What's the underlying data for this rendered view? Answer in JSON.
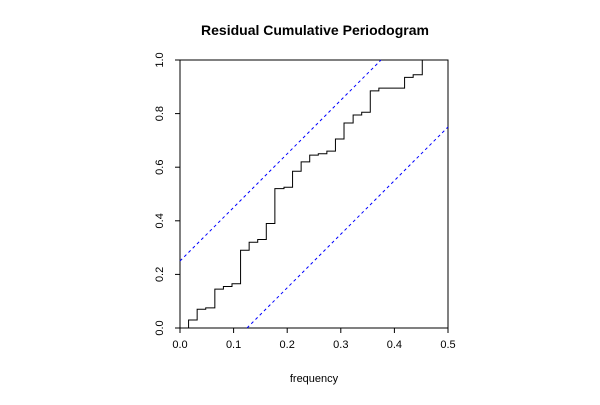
{
  "chart_data": {
    "type": "line",
    "title": "Residual Cumulative Periodogram",
    "xlabel": "frequency",
    "ylabel": "",
    "xlim": [
      0,
      0.5
    ],
    "ylim": [
      0,
      1
    ],
    "x_ticks": [
      "0.0",
      "0.1",
      "0.2",
      "0.3",
      "0.4",
      "0.5"
    ],
    "y_ticks": [
      "0.0",
      "0.2",
      "0.4",
      "0.6",
      "0.8",
      "1.0"
    ],
    "grid": false,
    "legend": "none",
    "series": [
      {
        "style": "step",
        "color": "#000000",
        "x": [
          0.0,
          0.016,
          0.032,
          0.048,
          0.065,
          0.081,
          0.097,
          0.113,
          0.129,
          0.145,
          0.161,
          0.177,
          0.194,
          0.21,
          0.226,
          0.242,
          0.258,
          0.274,
          0.29,
          0.306,
          0.323,
          0.339,
          0.355,
          0.371,
          0.387,
          0.403,
          0.419,
          0.435,
          0.452,
          0.468,
          0.484,
          0.5
        ],
        "y": [
          0.0,
          0.03,
          0.07,
          0.075,
          0.145,
          0.155,
          0.165,
          0.29,
          0.32,
          0.33,
          0.39,
          0.52,
          0.525,
          0.585,
          0.62,
          0.645,
          0.65,
          0.66,
          0.705,
          0.765,
          0.795,
          0.805,
          0.885,
          0.895,
          0.895,
          0.895,
          0.935,
          0.945,
          1.0,
          1.0,
          1.0,
          1.0
        ]
      },
      {
        "style": "dashed",
        "color": "#0000ff",
        "x": [
          0.0,
          0.375
        ],
        "y": [
          0.25,
          1.0
        ]
      },
      {
        "style": "dashed",
        "color": "#0000ff",
        "x": [
          0.125,
          0.5
        ],
        "y": [
          0.0,
          0.75
        ]
      }
    ]
  }
}
